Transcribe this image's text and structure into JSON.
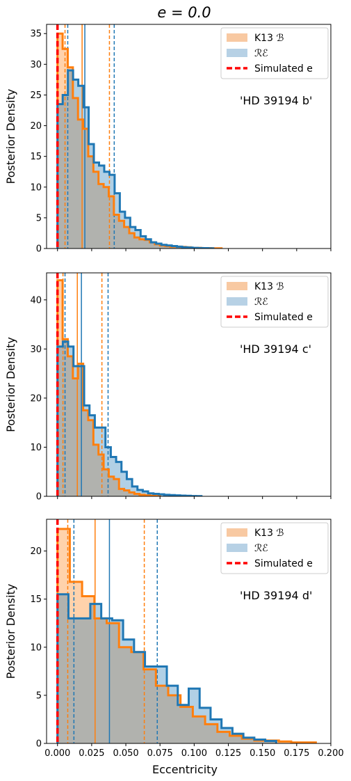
{
  "figure": {
    "title": "e = 0.0",
    "xlabel": "Eccentricity",
    "ylabel": "Posterior Density"
  },
  "legend": {
    "labels": [
      "K13 ℬ",
      "ℛℰ",
      "Simulated e"
    ],
    "colors": [
      "#f8c9a2",
      "#b7d1e5",
      "#ff0000"
    ]
  },
  "colors": {
    "k13_line": "#ff7f0e",
    "re_line": "#1f77b4",
    "overlap": "#a9aaa9",
    "simulated": "#ff0000"
  },
  "chart_data": [
    {
      "type": "histogram",
      "annotation": "'HD 39194 b'",
      "ylabel": "Posterior Density",
      "xlim": [
        -0.008,
        0.2
      ],
      "ylim": [
        0,
        36.5
      ],
      "yticks": [
        0,
        5,
        10,
        15,
        20,
        25,
        30,
        35
      ],
      "xticks": [
        0.0,
        0.025,
        0.05,
        0.075,
        0.1,
        0.125,
        0.15,
        0.175,
        0.2
      ],
      "simulated_e": 0.0,
      "series": [
        {
          "name": "K13 ℬ",
          "bin_edges": [
            0,
            0.00375,
            0.0075,
            0.01125,
            0.015,
            0.01875,
            0.0225,
            0.02625,
            0.03,
            0.03375,
            0.0375,
            0.04125,
            0.045,
            0.04875,
            0.0525,
            0.05625,
            0.06,
            0.06375,
            0.0675,
            0.07125,
            0.075,
            0.07875,
            0.0825,
            0.08625,
            0.09,
            0.09375,
            0.0975,
            0.10125,
            0.105,
            0.10875,
            0.1125,
            0.11625,
            0.12
          ],
          "densities": [
            35,
            32.5,
            29.5,
            24.5,
            21,
            19.5,
            15,
            12.5,
            10.5,
            10,
            8.5,
            5.5,
            4.5,
            3.5,
            2.5,
            1.8,
            1.5,
            1.4,
            1.0,
            0.7,
            0.5,
            0.4,
            0.3,
            0.3,
            0.25,
            0.2,
            0.1,
            0.1,
            0.05,
            0.05,
            0.03,
            0.03
          ],
          "median": 0.018,
          "ci": [
            0.0055,
            0.038
          ]
        },
        {
          "name": "ℛℰ",
          "bin_edges": [
            0,
            0.0038,
            0.0076,
            0.0114,
            0.0152,
            0.019,
            0.0228,
            0.0266,
            0.0304,
            0.0342,
            0.038,
            0.0418,
            0.0456,
            0.0494,
            0.0532,
            0.057,
            0.0608,
            0.0646,
            0.0684,
            0.0722,
            0.076,
            0.0798,
            0.0836,
            0.0874,
            0.0912,
            0.095,
            0.0988,
            0.1026,
            0.1064,
            0.1102,
            0.114
          ],
          "densities": [
            23.5,
            25,
            29,
            27.5,
            26.5,
            23,
            17,
            14,
            13.5,
            12.5,
            12,
            9,
            6,
            5,
            3.5,
            3,
            2,
            1.5,
            1.0,
            0.8,
            0.6,
            0.5,
            0.4,
            0.3,
            0.2,
            0.15,
            0.1,
            0.07,
            0.05,
            0.03
          ],
          "median": 0.02,
          "ci": [
            0.0075,
            0.0415
          ]
        }
      ]
    },
    {
      "type": "histogram",
      "annotation": "'HD 39194 c'",
      "ylabel": "Posterior Density",
      "xlim": [
        -0.008,
        0.2
      ],
      "ylim": [
        0,
        45.5
      ],
      "yticks": [
        0,
        10,
        20,
        30,
        40
      ],
      "xticks": [
        0.0,
        0.025,
        0.05,
        0.075,
        0.1,
        0.125,
        0.15,
        0.175,
        0.2
      ],
      "simulated_e": 0.0,
      "series": [
        {
          "name": "K13 ℬ",
          "bin_edges": [
            0,
            0.00375,
            0.0075,
            0.01125,
            0.015,
            0.01875,
            0.0225,
            0.02625,
            0.03,
            0.03375,
            0.0375,
            0.04125,
            0.045,
            0.04875,
            0.0525,
            0.05625,
            0.06,
            0.06375,
            0.0675,
            0.07125,
            0.075
          ],
          "densities": [
            44,
            32,
            28.5,
            24,
            27,
            17.5,
            15.5,
            10.5,
            8.5,
            5.5,
            4,
            3.5,
            1.5,
            1.2,
            0.8,
            0.5,
            0.3,
            0.2,
            0.1,
            0.05
          ],
          "median": 0.0145,
          "ci": [
            0.004,
            0.0325
          ]
        },
        {
          "name": "ℛℰ",
          "bin_edges": [
            0,
            0.0039,
            0.0078,
            0.0117,
            0.0156,
            0.0195,
            0.0234,
            0.0273,
            0.0312,
            0.0351,
            0.039,
            0.0429,
            0.0468,
            0.0507,
            0.0546,
            0.0585,
            0.0624,
            0.0663,
            0.0702,
            0.0741,
            0.078,
            0.0819,
            0.0858,
            0.0897,
            0.0936,
            0.0975,
            0.1014,
            0.1053
          ],
          "densities": [
            30.5,
            31.5,
            30.5,
            26.5,
            26.5,
            18.5,
            16.5,
            14,
            14,
            10,
            8,
            7,
            5,
            3.5,
            2,
            1.3,
            1.0,
            0.6,
            0.5,
            0.4,
            0.3,
            0.25,
            0.2,
            0.15,
            0.1,
            0.05,
            0.03
          ],
          "median": 0.0175,
          "ci": [
            0.0055,
            0.037
          ]
        }
      ]
    },
    {
      "type": "histogram",
      "annotation": "'HD 39194 d'",
      "ylabel": "Posterior Density",
      "xlabel": "Eccentricity",
      "xlim": [
        -0.008,
        0.2
      ],
      "ylim": [
        0,
        23.3
      ],
      "yticks": [
        0,
        5,
        10,
        15,
        20
      ],
      "xticks": [
        0.0,
        0.025,
        0.05,
        0.075,
        0.1,
        0.125,
        0.15,
        0.175,
        0.2
      ],
      "xtick_labels": [
        "0.000",
        "0.025",
        "0.050",
        "0.075",
        "0.100",
        "0.125",
        "0.150",
        "0.175",
        "0.200"
      ],
      "simulated_e": 0.0,
      "series": [
        {
          "name": "K13 ℬ",
          "bin_edges": [
            0,
            0.009,
            0.018,
            0.027,
            0.036,
            0.045,
            0.054,
            0.063,
            0.072,
            0.081,
            0.09,
            0.099,
            0.108,
            0.117,
            0.126,
            0.135,
            0.144,
            0.153,
            0.162,
            0.171,
            0.18,
            0.189
          ],
          "densities": [
            22.3,
            16.8,
            15.3,
            13,
            12.5,
            10,
            9.5,
            7.7,
            6,
            5,
            3.8,
            2.8,
            2,
            1.2,
            0.8,
            0.5,
            0.3,
            0.3,
            0.2,
            0.1,
            0.1
          ],
          "median": 0.0275,
          "ci": [
            0.0075,
            0.0635
          ]
        },
        {
          "name": "ℛℰ",
          "bin_edges": [
            0,
            0.008,
            0.016,
            0.024,
            0.032,
            0.04,
            0.048,
            0.056,
            0.064,
            0.072,
            0.08,
            0.088,
            0.096,
            0.104,
            0.112,
            0.12,
            0.128,
            0.136,
            0.144,
            0.152,
            0.16
          ],
          "densities": [
            15.5,
            13,
            13,
            14.5,
            13,
            12.8,
            10.8,
            9.5,
            8,
            8,
            6,
            4,
            5.7,
            3.7,
            2.5,
            1.6,
            1.0,
            0.6,
            0.4,
            0.25
          ],
          "median": 0.038,
          "ci": [
            0.012,
            0.073
          ]
        }
      ]
    }
  ]
}
